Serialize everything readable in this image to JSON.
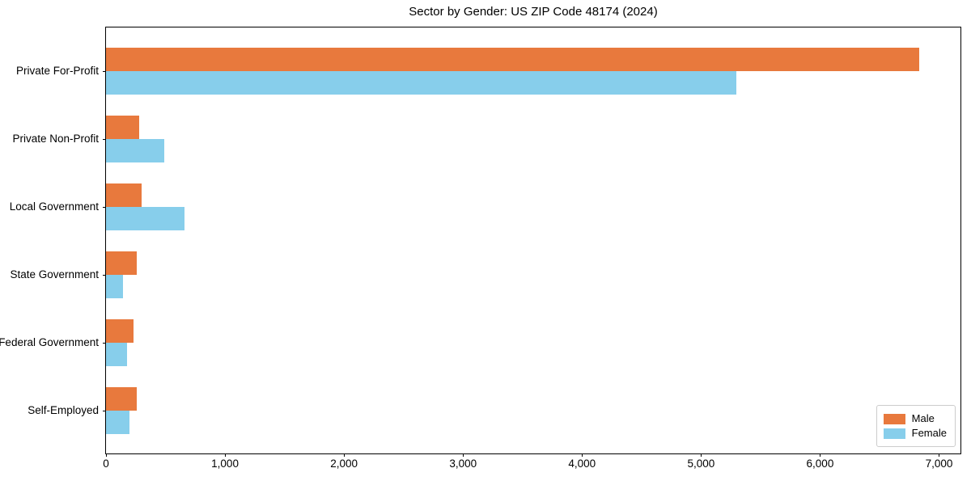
{
  "chart_data": {
    "type": "bar",
    "orientation": "horizontal",
    "title": "Sector by Gender: US ZIP Code 48174 (2024)",
    "categories": [
      "Private For-Profit",
      "Private Non-Profit",
      "Local Government",
      "State Government",
      "Federal Government",
      "Self-Employed"
    ],
    "series": [
      {
        "name": "Male",
        "color": "#E8793D",
        "values": [
          6830,
          280,
          300,
          260,
          230,
          255
        ]
      },
      {
        "name": "Female",
        "color": "#87CEEB",
        "values": [
          5300,
          490,
          660,
          140,
          180,
          200
        ]
      }
    ],
    "xlabel": "",
    "ylabel": "",
    "xlim": [
      0,
      7180
    ],
    "xticks": [
      0,
      1000,
      2000,
      3000,
      4000,
      5000,
      6000,
      7000
    ],
    "xtick_labels": [
      "0",
      "1,000",
      "2,000",
      "3,000",
      "4,000",
      "5,000",
      "6,000",
      "7,000"
    ],
    "grid": false,
    "legend_position": "lower right",
    "colors": {
      "spine": "#000000",
      "background": "#ffffff",
      "legend_border": "#cccccc"
    }
  }
}
